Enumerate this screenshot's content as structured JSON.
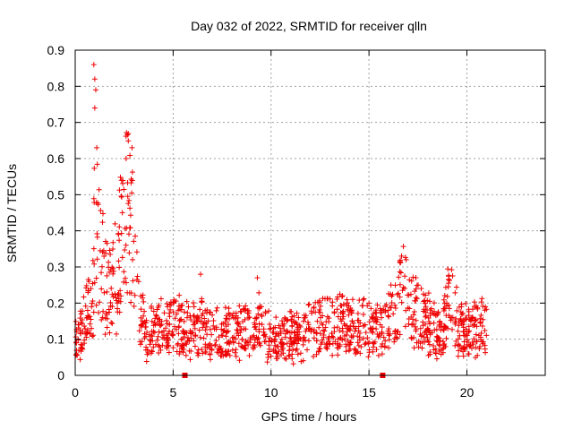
{
  "chart_data": {
    "type": "scatter",
    "title": "Day 032 of 2022, SRMTID for receiver qlln",
    "xlabel": "GPS time / hours",
    "ylabel": "SRMTID / TECUs",
    "xlim": [
      0,
      24
    ],
    "ylim": [
      0,
      0.9
    ],
    "xticks": [
      0,
      5,
      10,
      15,
      20
    ],
    "xtick_labels": [
      "0",
      "5",
      "10",
      "15",
      "20"
    ],
    "yticks": [
      0,
      0.1,
      0.2,
      0.3,
      0.4,
      0.5,
      0.6,
      0.7,
      0.8,
      0.9
    ],
    "ytick_labels": [
      "0",
      "0.1",
      "0.2",
      "0.3",
      "0.4",
      "0.5",
      "0.6",
      "0.7",
      "0.8",
      "0.9"
    ],
    "grid": true,
    "marker": "+",
    "color": "#ee0000",
    "series_trend": {
      "name": "SRMTID",
      "x": [
        0.0,
        0.3,
        0.6,
        0.9,
        1.0,
        1.2,
        1.5,
        1.8,
        2.1,
        2.4,
        2.7,
        3.0,
        3.3,
        3.6,
        4.0,
        4.5,
        5.0,
        5.5,
        6.0,
        6.5,
        7.0,
        7.5,
        8.0,
        8.5,
        9.0,
        9.5,
        10.0,
        10.5,
        11.0,
        11.5,
        12.0,
        12.5,
        13.0,
        13.5,
        14.0,
        14.5,
        15.0,
        15.5,
        16.0,
        16.5,
        16.8,
        17.0,
        17.5,
        18.0,
        18.3,
        18.6,
        19.0,
        19.3,
        19.6,
        20.0,
        20.5,
        21.0
      ],
      "y": [
        0.09,
        0.12,
        0.16,
        0.2,
        0.45,
        0.36,
        0.26,
        0.22,
        0.28,
        0.4,
        0.47,
        0.35,
        0.15,
        0.12,
        0.12,
        0.13,
        0.16,
        0.12,
        0.12,
        0.13,
        0.12,
        0.11,
        0.12,
        0.12,
        0.13,
        0.14,
        0.1,
        0.09,
        0.11,
        0.1,
        0.12,
        0.13,
        0.14,
        0.15,
        0.13,
        0.14,
        0.13,
        0.12,
        0.14,
        0.2,
        0.26,
        0.18,
        0.17,
        0.15,
        0.12,
        0.11,
        0.18,
        0.21,
        0.13,
        0.12,
        0.14,
        0.12
      ]
    },
    "spikes": [
      {
        "x": 0.95,
        "y": 0.86
      },
      {
        "x": 1.0,
        "y": 0.82
      },
      {
        "x": 1.05,
        "y": 0.79
      },
      {
        "x": 1.0,
        "y": 0.74
      },
      {
        "x": 1.1,
        "y": 0.63
      },
      {
        "x": 2.6,
        "y": 0.6
      },
      {
        "x": 2.9,
        "y": 0.63
      },
      {
        "x": 6.4,
        "y": 0.28
      },
      {
        "x": 9.3,
        "y": 0.27
      },
      {
        "x": 16.9,
        "y": 0.32
      }
    ],
    "gap_markers_x": [
      5.6,
      15.7
    ]
  }
}
